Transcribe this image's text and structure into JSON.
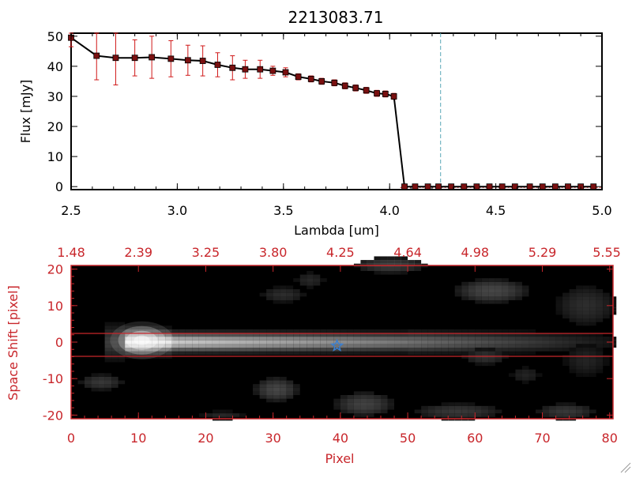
{
  "title": "2213083.71",
  "spectrum": {
    "xlabel": "Lambda [um]",
    "ylabel": "Flux [mJy]",
    "xticks": [
      "2.5",
      "3.0",
      "3.5",
      "4.0",
      "4.5",
      "5.0"
    ],
    "yticks": [
      "0",
      "10",
      "20",
      "30",
      "40",
      "50"
    ]
  },
  "image_panel": {
    "xlabel": "Pixel",
    "ylabel": "Space Shift [pixel]",
    "xticks": [
      "0",
      "10",
      "20",
      "30",
      "40",
      "50",
      "60",
      "70",
      "80"
    ],
    "yticks": [
      "-20",
      "-10",
      "0",
      "10",
      "20"
    ],
    "top_ticks": [
      "1.48",
      "2.39",
      "3.25",
      "3.80",
      "4.25",
      "4.64",
      "4.98",
      "5.29",
      "5.55"
    ]
  },
  "colors": {
    "axis_red": "#c8262b",
    "line": "#000000",
    "marker": "#7a1010",
    "errorbar": "#d01818",
    "cyan_dashed": "#5aa7b7",
    "star": "#3a7fd0"
  },
  "chart_data": [
    {
      "type": "line",
      "title": "2213083.71",
      "xlabel": "Lambda [um]",
      "ylabel": "Flux [mJy]",
      "xlim": [
        2.5,
        5.0
      ],
      "ylim": [
        -1,
        51
      ],
      "grid": false,
      "vline": 4.24,
      "series": [
        {
          "x": [
            2.5,
            2.62,
            2.71,
            2.8,
            2.88,
            2.97,
            3.05,
            3.12,
            3.19,
            3.26,
            3.32,
            3.39,
            3.45,
            3.51,
            3.57,
            3.63,
            3.68,
            3.74,
            3.79,
            3.84,
            3.89,
            3.94,
            3.98,
            4.02,
            4.07,
            4.12,
            4.18,
            4.23,
            4.29,
            4.35,
            4.41,
            4.47,
            4.53,
            4.59,
            4.66,
            4.72,
            4.78,
            4.84,
            4.9,
            4.96
          ],
          "y": [
            49.5,
            43.5,
            42.8,
            42.8,
            43.0,
            42.5,
            42.0,
            41.8,
            40.5,
            39.5,
            39.0,
            39.0,
            38.5,
            38.0,
            36.5,
            35.8,
            35.0,
            34.5,
            33.5,
            32.8,
            32.0,
            31.0,
            30.8,
            30.0,
            0,
            0,
            0,
            0,
            0,
            0,
            0,
            0,
            0,
            0,
            0,
            0,
            0,
            0,
            0,
            0
          ],
          "yerr": [
            3,
            8,
            9,
            6,
            7,
            6,
            5,
            5,
            4,
            4,
            3,
            3,
            1.5,
            1.5,
            1,
            1,
            1,
            1,
            1,
            1,
            1,
            1,
            1,
            1,
            0,
            0,
            0,
            0,
            0,
            0,
            0,
            0,
            0,
            0,
            0,
            0,
            0,
            0,
            0,
            0
          ]
        }
      ]
    },
    {
      "type": "heatmap",
      "xlabel": "Pixel",
      "ylabel": "Space Shift [pixel]",
      "xlim": [
        0,
        80.5
      ],
      "ylim": [
        -21,
        21
      ],
      "top_axis_ticks": [
        "1.48",
        "2.39",
        "3.25",
        "3.80",
        "4.25",
        "4.64",
        "4.98",
        "5.29",
        "5.55"
      ],
      "hlines": [
        3,
        -3
      ],
      "star_marker": [
        39.5,
        -1
      ],
      "colormap": "grayscale"
    }
  ]
}
